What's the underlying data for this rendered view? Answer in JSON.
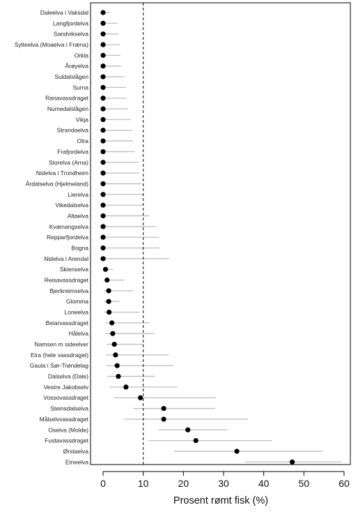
{
  "chart_data": {
    "type": "dot-interval",
    "xlabel": "Prosent rømt fisk (%)",
    "xlim": [
      0,
      60
    ],
    "x_ticks": [
      0,
      10,
      20,
      30,
      40,
      50,
      60
    ],
    "reference_line": 10,
    "grid": false,
    "rivers": [
      {
        "name": "Daleelva i Vaksdal",
        "value": 0,
        "low": 0,
        "high": 1.8
      },
      {
        "name": "Langfjordelva",
        "value": 0,
        "low": 0,
        "high": 3.6
      },
      {
        "name": "Sandvikselva",
        "value": 0,
        "low": 0,
        "high": 3.8
      },
      {
        "name": "Sylteelva (Moaelva i Fræna)",
        "value": 0,
        "low": 0,
        "high": 4.3
      },
      {
        "name": "Orkla",
        "value": 0,
        "low": 0,
        "high": 4.3
      },
      {
        "name": "Årøyelva",
        "value": 0,
        "low": 0,
        "high": 4.5
      },
      {
        "name": "Suldalslågen",
        "value": 0,
        "low": 0,
        "high": 5.3
      },
      {
        "name": "Surna",
        "value": 0,
        "low": 0,
        "high": 5.7
      },
      {
        "name": "Ranavassdraget",
        "value": 0,
        "low": 0,
        "high": 5.8
      },
      {
        "name": "Numedalslågen",
        "value": 0,
        "low": 0,
        "high": 6.2
      },
      {
        "name": "Vikja",
        "value": 0,
        "low": 0,
        "high": 6.8
      },
      {
        "name": "Strandaelva",
        "value": 0,
        "low": 0,
        "high": 7.3
      },
      {
        "name": "Otra",
        "value": 0,
        "low": 0,
        "high": 7.4
      },
      {
        "name": "Frafjordelva",
        "value": 0,
        "low": 0,
        "high": 7.9
      },
      {
        "name": "Storelva (Arna)",
        "value": 0,
        "low": 0,
        "high": 8.9
      },
      {
        "name": "Nidelva i Trondheim",
        "value": 0,
        "low": 0,
        "high": 9.1
      },
      {
        "name": "Årdalselva (Hjelmeland)",
        "value": 0,
        "low": 0,
        "high": 9.7
      },
      {
        "name": "Lierelva",
        "value": 0,
        "low": 0,
        "high": 10.1
      },
      {
        "name": "Vikedalselva",
        "value": 0,
        "low": 0,
        "high": 10.1
      },
      {
        "name": "Altaelva",
        "value": 0,
        "low": 0,
        "high": 11.5
      },
      {
        "name": "Kvænangselva",
        "value": 0,
        "low": 0,
        "high": 13.2
      },
      {
        "name": "Repparfjordelva",
        "value": 0,
        "low": 0,
        "high": 14
      },
      {
        "name": "Bogna",
        "value": 0,
        "low": 0,
        "high": 14
      },
      {
        "name": "Nidelva i Arendal",
        "value": 0,
        "low": 0,
        "high": 16.4
      },
      {
        "name": "Skienselva",
        "value": 0.6,
        "low": 0,
        "high": 2.5
      },
      {
        "name": "Reisavassdraget",
        "value": 1,
        "low": 0.1,
        "high": 5.3
      },
      {
        "name": "Bjerkreimselva",
        "value": 1.4,
        "low": 0.2,
        "high": 7.5
      },
      {
        "name": "Glomma",
        "value": 1.4,
        "low": 0.2,
        "high": 4.1
      },
      {
        "name": "Loneelva",
        "value": 1.5,
        "low": 0.2,
        "high": 9.1
      },
      {
        "name": "Beiarvassdraget",
        "value": 2.2,
        "low": 0.5,
        "high": 11.6
      },
      {
        "name": "Hålelva",
        "value": 2.4,
        "low": 0.5,
        "high": 12.8
      },
      {
        "name": "Namsen m sideelver",
        "value": 2.8,
        "low": 0.9,
        "high": 10.1
      },
      {
        "name": "Eira (hele vassdraget)",
        "value": 3.1,
        "low": 0.7,
        "high": 16.3
      },
      {
        "name": "Gaula i Sør-Trøndelag",
        "value": 3.5,
        "low": 0.8,
        "high": 17.5
      },
      {
        "name": "Dalselva (Dale)",
        "value": 3.8,
        "low": 1,
        "high": 12.9
      },
      {
        "name": "Vestre Jakobselv",
        "value": 5.7,
        "low": 1.6,
        "high": 18.5
      },
      {
        "name": "Vossovassdraget",
        "value": 9.3,
        "low": 2.6,
        "high": 28.1
      },
      {
        "name": "Steinsdalselva",
        "value": 15.1,
        "low": 7.6,
        "high": 27.9
      },
      {
        "name": "Målselvvassdraget",
        "value": 15.1,
        "low": 5.3,
        "high": 36.1
      },
      {
        "name": "Oselva (Molde)",
        "value": 21.1,
        "low": 13.8,
        "high": 31
      },
      {
        "name": "Fustavassdraget",
        "value": 23.1,
        "low": 11.3,
        "high": 42.1
      },
      {
        "name": "Ørstaelva",
        "value": 33.3,
        "low": 17.6,
        "high": 54.6
      },
      {
        "name": "Etneelva",
        "value": 47.1,
        "low": 35.3,
        "high": 59.2
      }
    ]
  },
  "colors": {
    "point": "#000000",
    "interval": "#bdbdbd",
    "axis": "#000000",
    "reference_line": "#000000"
  }
}
